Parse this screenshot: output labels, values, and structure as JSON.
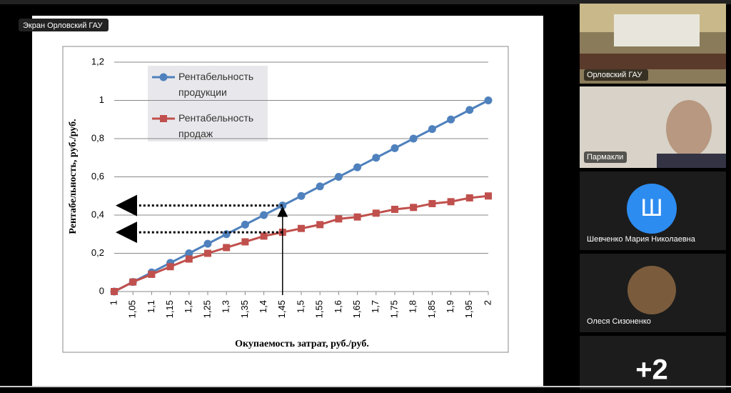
{
  "screen_label": "Экран Орловский ГАУ",
  "chart_data": {
    "type": "line",
    "y_label": "Рентабельность, руб./руб.",
    "x_label": "Окупаемость затрат, руб./руб.",
    "categories": [
      "1",
      "1,05",
      "1,1",
      "1,15",
      "1,2",
      "1,25",
      "1,3",
      "1,35",
      "1,4",
      "1,45",
      "1,5",
      "1,55",
      "1,6",
      "1,65",
      "1,7",
      "1,75",
      "1,8",
      "1,85",
      "1,9",
      "1,95",
      "2"
    ],
    "series": [
      {
        "name": "Рентабельность продукции",
        "color": "#4f81bd",
        "marker": "circle",
        "values": [
          0,
          0.05,
          0.1,
          0.15,
          0.2,
          0.25,
          0.3,
          0.35,
          0.4,
          0.45,
          0.5,
          0.55,
          0.6,
          0.65,
          0.7,
          0.75,
          0.8,
          0.85,
          0.9,
          0.95,
          1
        ]
      },
      {
        "name": "Рентабельность продаж",
        "color": "#c0504d",
        "marker": "square",
        "values": [
          0,
          0.05,
          0.09,
          0.13,
          0.17,
          0.2,
          0.23,
          0.26,
          0.29,
          0.31,
          0.33,
          0.35,
          0.38,
          0.39,
          0.41,
          0.43,
          0.44,
          0.46,
          0.47,
          0.49,
          0.5
        ]
      }
    ],
    "ylim": [
      0,
      1.2
    ],
    "yticks": [
      0,
      {
        "value": 0.2,
        "label": "0,2"
      },
      {
        "value": 0.4,
        "label": "0,4"
      },
      {
        "value": 0.6,
        "label": "0,6"
      },
      {
        "value": 0.8,
        "label": "0,8"
      },
      1,
      {
        "value": 1.2,
        "label": "1,2"
      }
    ],
    "grid": true
  },
  "participants": [
    {
      "name": "Орловский ГАУ"
    },
    {
      "name": "Пармакли"
    },
    {
      "name": "Шевченко Мария Николаевна",
      "initial": "Ш"
    },
    {
      "name": "Олеся Сизоненко"
    }
  ],
  "more_count": "+2"
}
